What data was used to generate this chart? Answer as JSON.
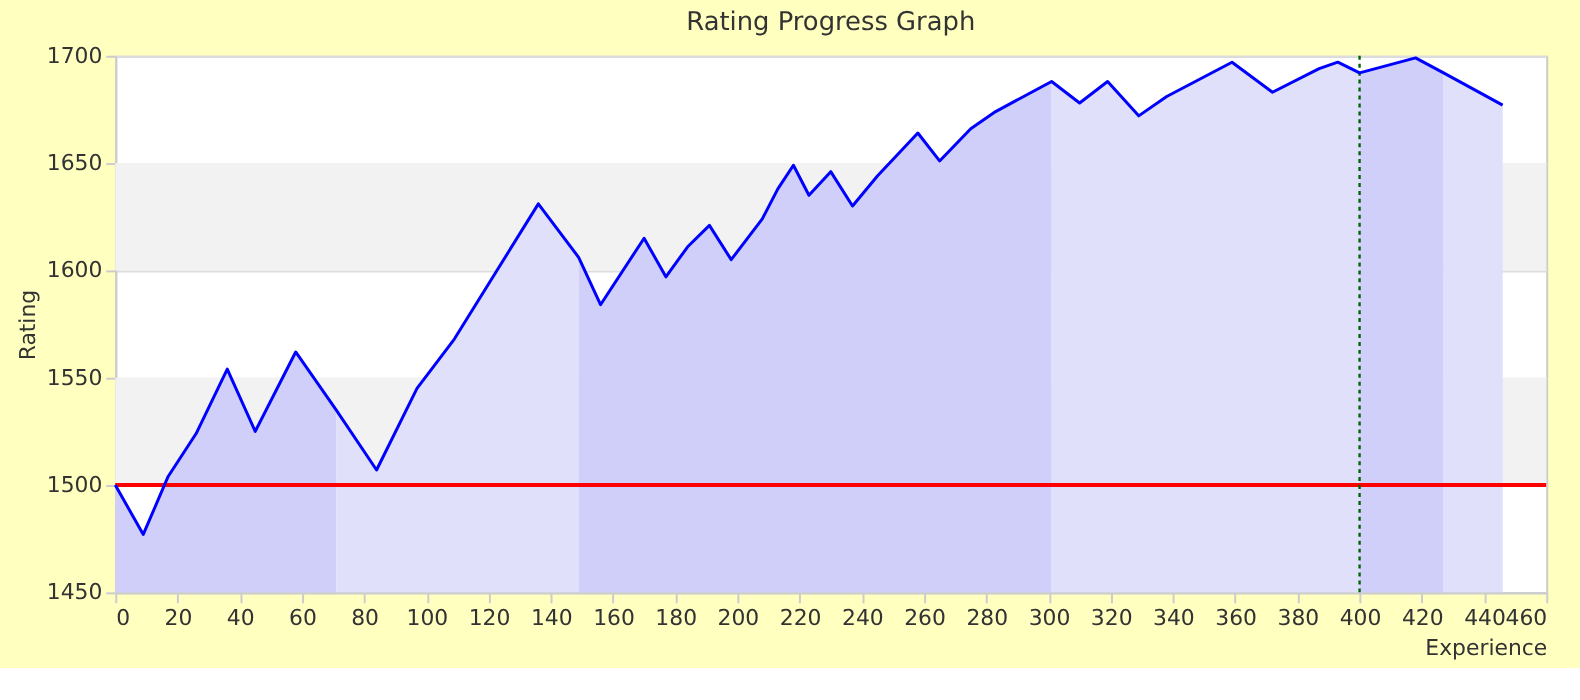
{
  "chart_data": {
    "type": "area",
    "title": "Rating Progress Graph",
    "xlabel": "Experience",
    "ylabel": "Rating",
    "xlim": [
      0,
      460
    ],
    "xticks": [
      0,
      20,
      40,
      60,
      80,
      100,
      120,
      140,
      160,
      180,
      200,
      220,
      240,
      260,
      280,
      300,
      320,
      340,
      360,
      380,
      400,
      420,
      440,
      460
    ],
    "ylim": [
      1450,
      1700
    ],
    "yticks": [
      1450,
      1500,
      1550,
      1600,
      1650,
      1700
    ],
    "grid": "y",
    "marker": "none",
    "series": [
      {
        "color": "#cfcffa",
        "x": [
          0,
          9,
          17,
          26,
          36,
          45,
          58,
          71
        ],
        "values": [
          1500,
          1477,
          1504,
          1524,
          1554,
          1525,
          1562,
          1535
        ]
      },
      {
        "color": "#e0e0fa",
        "x": [
          71,
          84,
          97,
          109,
          136,
          149
        ],
        "values": [
          1535,
          1507,
          1545,
          1568,
          1631,
          1606
        ]
      },
      {
        "color": "#cfcffa",
        "x": [
          149,
          156,
          170,
          177,
          184,
          191,
          198,
          208,
          213,
          218,
          223,
          230,
          237,
          245,
          258,
          265,
          275,
          283,
          301
        ],
        "values": [
          1606,
          1584,
          1615,
          1597,
          1611,
          1621,
          1605,
          1624,
          1638,
          1649,
          1635,
          1646,
          1630,
          1644,
          1664,
          1651,
          1666,
          1674,
          1688
        ]
      },
      {
        "color": "#e0e0fa",
        "x": [
          301,
          310,
          319,
          329,
          338,
          359,
          372,
          387,
          393,
          400
        ],
        "values": [
          1688,
          1678,
          1688,
          1672,
          1681,
          1697,
          1683,
          1694,
          1697,
          1692
        ]
      },
      {
        "color": "#cfcffa",
        "x": [
          400,
          418,
          427
        ],
        "values": [
          1692,
          1699,
          1692
        ]
      },
      {
        "color": "#e0e0fa",
        "x": [
          427,
          446
        ],
        "values": [
          1692,
          1677
        ]
      },
      {
        "type": "line",
        "color": "#0000ff",
        "line_style": "solid",
        "x": [
          0,
          9,
          17,
          26,
          36,
          45,
          58,
          71,
          84,
          97,
          109,
          136,
          149,
          156,
          170,
          177,
          184,
          191,
          198,
          208,
          213,
          218,
          223,
          230,
          237,
          245,
          258,
          265,
          275,
          283,
          301,
          310,
          319,
          329,
          338,
          359,
          372,
          387,
          393,
          400,
          418,
          427,
          446
        ],
        "values": [
          1500,
          1477,
          1504,
          1524,
          1554,
          1525,
          1562,
          1535,
          1507,
          1545,
          1568,
          1631,
          1606,
          1584,
          1615,
          1597,
          1611,
          1621,
          1605,
          1624,
          1638,
          1649,
          1635,
          1646,
          1630,
          1644,
          1664,
          1651,
          1666,
          1674,
          1688,
          1678,
          1688,
          1672,
          1681,
          1697,
          1683,
          1694,
          1697,
          1692,
          1699,
          1692,
          1677
        ]
      }
    ],
    "bands": [
      {
        "axis": "y",
        "from": 1500,
        "to": 1550,
        "color": "#f2f2f2"
      },
      {
        "axis": "y",
        "from": 1600,
        "to": 1650,
        "color": "#f2f2f2"
      }
    ],
    "ref_lines": [
      {
        "axis": "y",
        "value": 1500,
        "color": "#ff0000",
        "line_style": "solid"
      },
      {
        "axis": "x",
        "value": 400,
        "color": "#006400",
        "line_style": "dotted"
      }
    ]
  }
}
